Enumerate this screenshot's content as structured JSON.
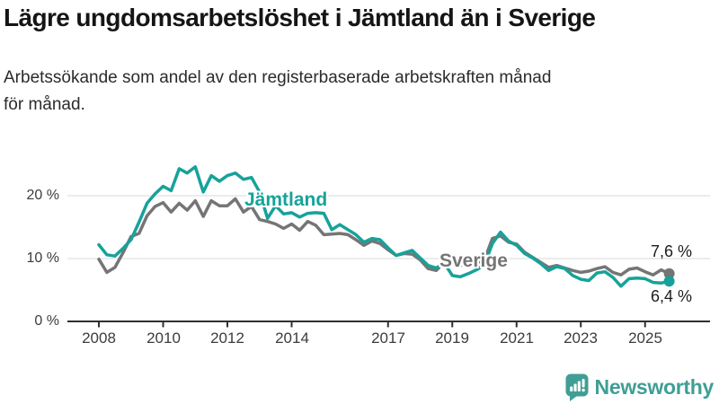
{
  "header": {
    "title": "Lägre ungdomsarbetslöshet i Jämtland än i Sverige",
    "subtitle_lines": [
      "Arbetssökande som andel av den registerbaserade arbetskraften månad",
      "för månad."
    ]
  },
  "theme": {
    "background": "#ffffff",
    "grid": "#d9d9d9",
    "axis": "#2f2f2f",
    "text": "#3c3c3c",
    "jamtland_teal": "#16a29a",
    "sverige_gray": "#757575",
    "brand_teal": "#3f9e95"
  },
  "chart_data": {
    "type": "line",
    "title": "Lägre ungdomsarbetslöshet i Jämtland än i Sverige",
    "subtitle": "Arbetssökande som andel av den registerbaserade arbetskraften månad för månad.",
    "ylabel": "",
    "xlabel": "",
    "ylim": [
      0,
      26
    ],
    "xlim": [
      2007.8,
      2026.2
    ],
    "grid": "horizontal",
    "legend_position": "inline-labels",
    "y_tick_labels": [
      "20 %",
      "10 %",
      "0 %"
    ],
    "y_tick_values": [
      20,
      10,
      0
    ],
    "x_tick_labels": [
      "2008",
      "2010",
      "2012",
      "2014",
      "2017",
      "2019",
      "2021",
      "2023",
      "2025"
    ],
    "x_tick_years": [
      2008,
      2010,
      2012,
      2014,
      2017,
      2019,
      2021,
      2023,
      2025
    ],
    "x": [
      2008.0,
      2008.25,
      2008.5,
      2008.75,
      2009.0,
      2009.25,
      2009.5,
      2009.75,
      2010.0,
      2010.25,
      2010.5,
      2010.75,
      2011.0,
      2011.25,
      2011.5,
      2011.75,
      2012.0,
      2012.25,
      2012.5,
      2012.75,
      2013.0,
      2013.25,
      2013.5,
      2013.75,
      2014.0,
      2014.25,
      2014.5,
      2014.75,
      2015.0,
      2015.25,
      2015.5,
      2015.75,
      2016.0,
      2016.25,
      2016.5,
      2016.75,
      2017.0,
      2017.25,
      2017.5,
      2017.75,
      2018.0,
      2018.25,
      2018.5,
      2018.75,
      2019.0,
      2019.25,
      2019.5,
      2019.75,
      2020.0,
      2020.25,
      2020.5,
      2020.75,
      2021.0,
      2021.25,
      2021.5,
      2021.75,
      2022.0,
      2022.25,
      2022.5,
      2022.75,
      2023.0,
      2023.25,
      2023.5,
      2023.75,
      2024.0,
      2024.25,
      2024.5,
      2024.75,
      2025.0,
      2025.25,
      2025.5,
      2025.75
    ],
    "series": [
      {
        "id": "sverige",
        "name": "Sverige",
        "color": "#757575",
        "values": [
          9.9,
          7.8,
          8.6,
          10.9,
          13.5,
          14.0,
          16.8,
          18.3,
          18.9,
          17.4,
          18.8,
          17.7,
          19.2,
          16.7,
          19.2,
          18.4,
          18.4,
          19.5,
          17.4,
          18.3,
          16.2,
          15.9,
          15.5,
          14.8,
          15.5,
          14.5,
          15.9,
          15.3,
          13.8,
          13.9,
          14.0,
          13.8,
          13.0,
          12.1,
          12.8,
          12.4,
          11.4,
          10.5,
          10.8,
          10.7,
          9.8,
          8.4,
          8.1,
          9.4,
          9.2,
          8.9,
          9.1,
          9.3,
          9.8,
          13.2,
          13.6,
          12.6,
          12.3,
          11.0,
          10.2,
          9.4,
          8.6,
          8.9,
          8.5,
          8.1,
          7.8,
          8.0,
          8.4,
          8.7,
          7.8,
          7.4,
          8.3,
          8.5,
          7.9,
          7.4,
          8.2,
          7.6
        ]
      },
      {
        "id": "jamtland",
        "name": "Jämtland",
        "color": "#16a29a",
        "values": [
          12.2,
          10.6,
          10.4,
          11.6,
          13.0,
          15.8,
          18.8,
          20.3,
          21.5,
          20.8,
          24.3,
          23.6,
          24.6,
          20.6,
          23.2,
          22.3,
          23.2,
          23.6,
          22.6,
          22.9,
          20.6,
          16.4,
          18.4,
          17.1,
          17.3,
          16.6,
          17.2,
          17.3,
          17.2,
          14.6,
          15.4,
          14.6,
          13.8,
          12.6,
          13.2,
          13.0,
          11.7,
          10.5,
          10.9,
          11.3,
          10.1,
          8.9,
          8.5,
          9.3,
          7.3,
          7.1,
          7.6,
          8.2,
          9.0,
          12.4,
          14.2,
          12.8,
          12.1,
          10.8,
          10.1,
          9.2,
          8.1,
          8.7,
          8.4,
          7.3,
          6.7,
          6.5,
          7.7,
          7.9,
          7.0,
          5.6,
          6.8,
          6.9,
          6.8,
          6.2,
          6.1,
          6.4
        ]
      }
    ],
    "end_labels": {
      "sverige": "7,6 %",
      "jamtland": "6,4 %"
    },
    "series_inline_labels": {
      "jamtland": "Jämtland",
      "sverige": "Sverige"
    }
  },
  "footer": {
    "brand": "Newsworthy"
  }
}
